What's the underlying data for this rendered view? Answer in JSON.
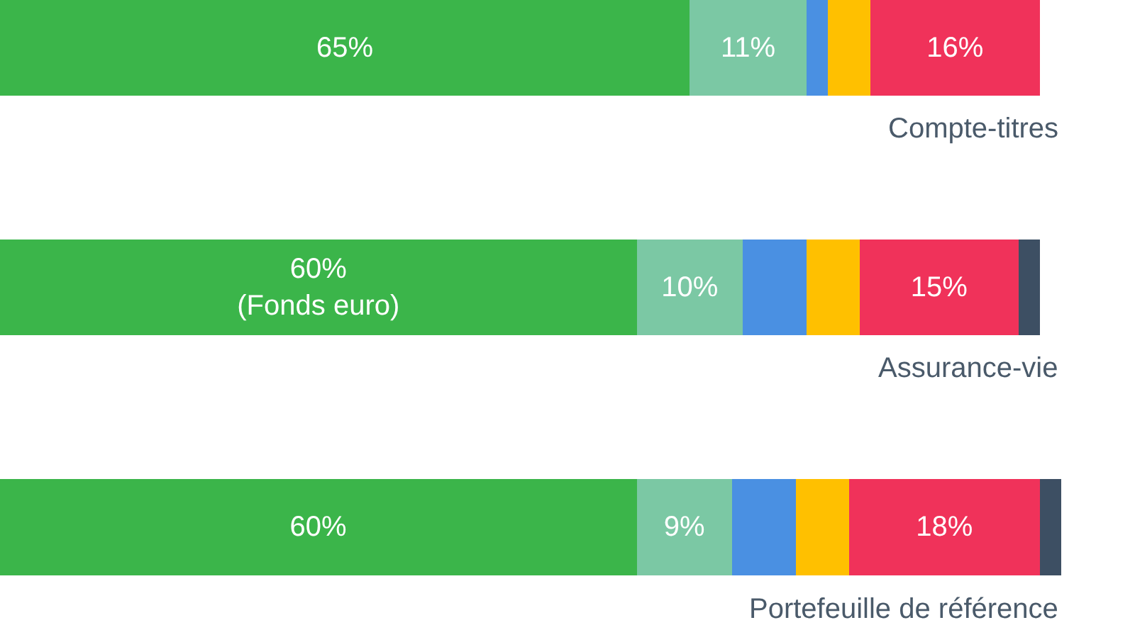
{
  "chart_data": {
    "type": "bar",
    "orientation": "horizontal",
    "stacked": true,
    "categories": [
      "Compte-titres",
      "Assurance-vie",
      "Portefeuille de référence"
    ],
    "series": [
      {
        "color": "#3bb54a",
        "values": [
          65,
          60,
          60
        ],
        "value_labels": [
          "65%",
          "60%\n(Fonds euro)",
          "60%"
        ]
      },
      {
        "color": "#7bc8a4",
        "values": [
          11,
          10,
          9
        ],
        "value_labels": [
          "11%",
          "10%",
          "9%"
        ]
      },
      {
        "color": "#4a90e2",
        "values": [
          2,
          6,
          6
        ],
        "value_labels": [
          null,
          null,
          null
        ]
      },
      {
        "color": "#ffc000",
        "values": [
          4,
          5,
          5
        ],
        "value_labels": [
          null,
          null,
          null
        ]
      },
      {
        "color": "#f0325a",
        "values": [
          16,
          15,
          18
        ],
        "value_labels": [
          "16%",
          "15%",
          "18%"
        ]
      },
      {
        "color": "#3d4f63",
        "values": [
          null,
          2,
          2
        ],
        "value_labels": [
          null,
          null,
          null
        ]
      }
    ],
    "data_labels": false
  }
}
